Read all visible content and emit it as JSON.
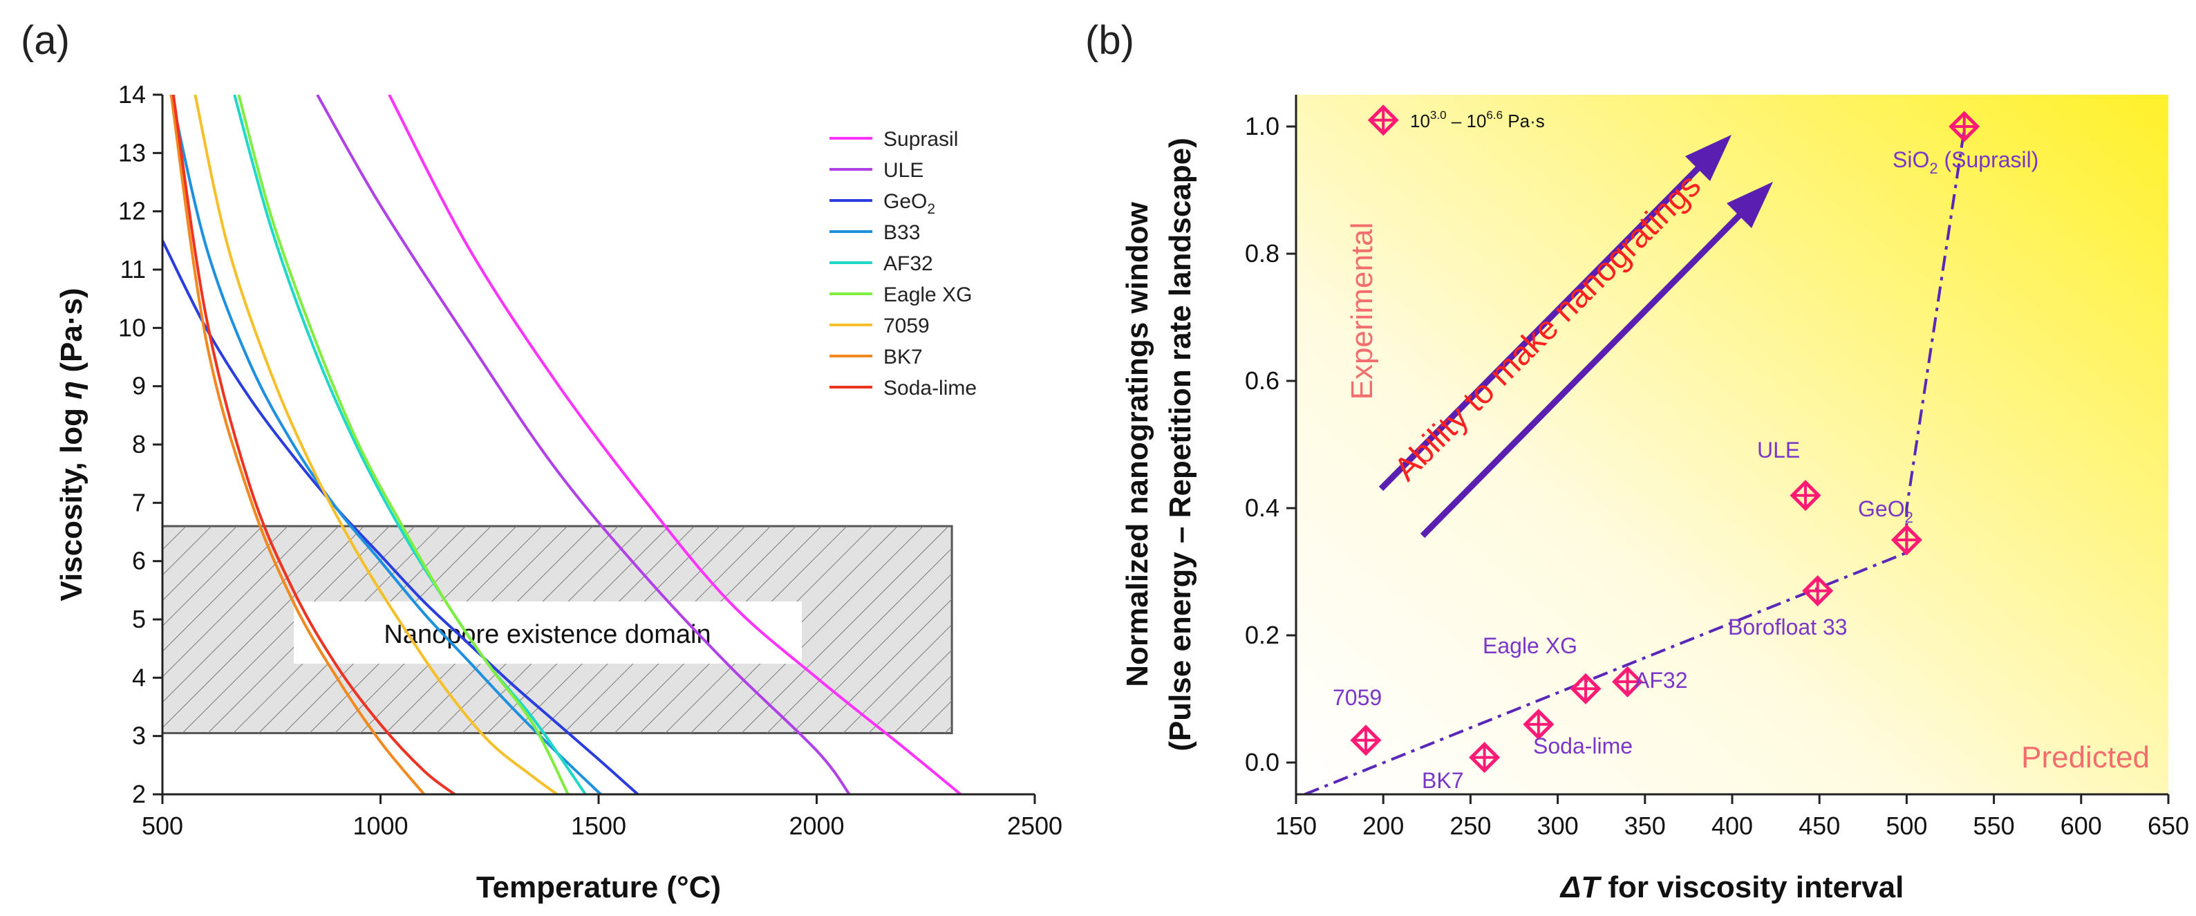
{
  "panel_labels": {
    "a": "(a)",
    "b": "(b)"
  },
  "chart_data": [
    {
      "type": "line",
      "panel": "a",
      "title": "",
      "xlabel": "Temperature (°C)",
      "ylabel_prefix": "Viscosity, log ",
      "ylabel_symbol": "η",
      "ylabel_suffix": " (Pa·s)",
      "xlim": [
        500,
        2500
      ],
      "ylim": [
        2,
        14
      ],
      "xticks": [
        500,
        1000,
        1500,
        2000,
        2500
      ],
      "yticks": [
        2,
        3,
        4,
        5,
        6,
        7,
        8,
        9,
        10,
        11,
        12,
        13,
        14
      ],
      "domain_box": {
        "label": "Nanopore existence domain",
        "x": [
          500,
          2310
        ],
        "y": [
          3.05,
          6.6
        ]
      },
      "legend_position": "top-right",
      "series": [
        {
          "name": "Suprasil",
          "display": "Suprasil",
          "color": "#ff33ff",
          "x": [
            1020,
            1200,
            1400,
            1600,
            1800,
            2000,
            2200,
            2330
          ],
          "y": [
            14,
            11.4,
            9.1,
            7.1,
            5.3,
            4.0,
            2.8,
            2.0
          ]
        },
        {
          "name": "ULE",
          "display": "ULE",
          "color": "#b040e8",
          "x": [
            855,
            1000,
            1200,
            1400,
            1600,
            1800,
            2000,
            2075
          ],
          "y": [
            14,
            12.1,
            9.8,
            7.6,
            5.8,
            4.2,
            2.75,
            2.0
          ]
        },
        {
          "name": "GeO2",
          "display": "GeO",
          "subscript": "2",
          "color": "#2a3ee0",
          "x": [
            500,
            600,
            700,
            800,
            900,
            1000,
            1100,
            1200,
            1300,
            1400,
            1500,
            1590
          ],
          "y": [
            11.5,
            10.0,
            8.8,
            7.8,
            6.9,
            6.1,
            5.3,
            4.6,
            3.9,
            3.25,
            2.6,
            2.0
          ]
        },
        {
          "name": "B33",
          "display": "B33",
          "color": "#1e90e0",
          "x": [
            520,
            600,
            700,
            800,
            900,
            1000,
            1100,
            1200,
            1300,
            1400,
            1505
          ],
          "y": [
            14,
            11.4,
            9.4,
            8.0,
            6.9,
            6.0,
            5.1,
            4.3,
            3.5,
            2.75,
            2.0
          ]
        },
        {
          "name": "AF32",
          "display": "AF32",
          "color": "#20d8c8",
          "x": [
            665,
            750,
            850,
            950,
            1050,
            1150,
            1250,
            1350,
            1470
          ],
          "y": [
            14,
            11.7,
            9.6,
            7.9,
            6.5,
            5.3,
            4.2,
            3.3,
            2.0
          ]
        },
        {
          "name": "Eagle XG",
          "display": "Eagle XG",
          "color": "#80ee40",
          "x": [
            675,
            750,
            850,
            950,
            1050,
            1150,
            1250,
            1350,
            1430
          ],
          "y": [
            14,
            11.9,
            9.8,
            8.0,
            6.6,
            5.3,
            4.2,
            3.2,
            2.0
          ]
        },
        {
          "name": "7059",
          "display": "7059",
          "color": "#f5c02a",
          "x": [
            575,
            650,
            750,
            850,
            950,
            1050,
            1150,
            1250,
            1350,
            1405
          ],
          "y": [
            14,
            11.4,
            9.2,
            7.5,
            6.1,
            4.9,
            3.8,
            2.9,
            2.3,
            2.0
          ]
        },
        {
          "name": "BK7",
          "display": "BK7",
          "color": "#f08a20",
          "x": [
            520,
            600,
            700,
            800,
            900,
            1000,
            1100
          ],
          "y": [
            14,
            9.8,
            7.1,
            5.3,
            4.0,
            2.9,
            2.0
          ]
        },
        {
          "name": "Soda-lime",
          "display": "Soda-lime",
          "color": "#ee3322",
          "x": [
            525,
            600,
            700,
            800,
            900,
            1000,
            1100,
            1170
          ],
          "y": [
            14,
            10.2,
            7.3,
            5.5,
            4.2,
            3.2,
            2.4,
            2.0
          ]
        }
      ]
    },
    {
      "type": "scatter",
      "panel": "b",
      "title": "",
      "xlabel_delta": "ΔT",
      "xlabel_rest": " for viscosity interval",
      "ylabel_line1": "Normalized nanogratings window",
      "ylabel_line2": "(Pulse energy – Repetition rate landscape)",
      "xlim": [
        150,
        650
      ],
      "ylim": [
        -0.05,
        1.05
      ],
      "xticks": [
        150,
        200,
        250,
        300,
        350,
        400,
        450,
        500,
        550,
        600,
        650
      ],
      "yticks": [
        0.0,
        0.2,
        0.4,
        0.6,
        0.8,
        1.0
      ],
      "points": [
        {
          "label": "7059",
          "x": 190,
          "y": 0.035
        },
        {
          "label": "BK7",
          "x": 258,
          "y": 0.008
        },
        {
          "label": "Soda-lime",
          "x": 289,
          "y": 0.06
        },
        {
          "label": "Eagle XG",
          "x": 316,
          "y": 0.116
        },
        {
          "label": "AF32",
          "x": 340,
          "y": 0.127
        },
        {
          "label": "ULE",
          "x": 442,
          "y": 0.42
        },
        {
          "label": "Borofloat 33",
          "x": 449,
          "y": 0.27
        },
        {
          "label": "GeO2",
          "x": 500,
          "y": 0.35
        },
        {
          "label": "SiO2 (Suprasil)",
          "x": 533,
          "y": 1.0
        }
      ],
      "trend_line": {
        "x": [
          155,
          500,
          500,
          533
        ],
        "y": [
          -0.05,
          0.33,
          0.4,
          0.995
        ]
      },
      "legend_marker": {
        "x": 200,
        "y": 1.01
      },
      "legend_text": {
        "base1": "10",
        "sup1": "3.0",
        "mid": " – ",
        "base2": "10",
        "sup2": "6.6",
        "tail": " Pa·s"
      },
      "label_geo2": {
        "base": "GeO",
        "sub": "2"
      },
      "label_sio2": {
        "base": "SiO",
        "sub": "2",
        "tail": " (Suprasil)"
      },
      "corner_experimental": "Experimental",
      "corner_predicted": "Predicted",
      "arrow_text": "Ability to make nanogratings",
      "colors": {
        "marker": "#ff1a75",
        "point_label": "#7a36c8",
        "trend": "#5a28b8",
        "arrow": "#5a1fb0",
        "arrow_text": "#ff2020",
        "corner_text": "#f26d6d",
        "gradient_light": "#ffffff",
        "gradient_dark": "#fff12a"
      }
    }
  ]
}
